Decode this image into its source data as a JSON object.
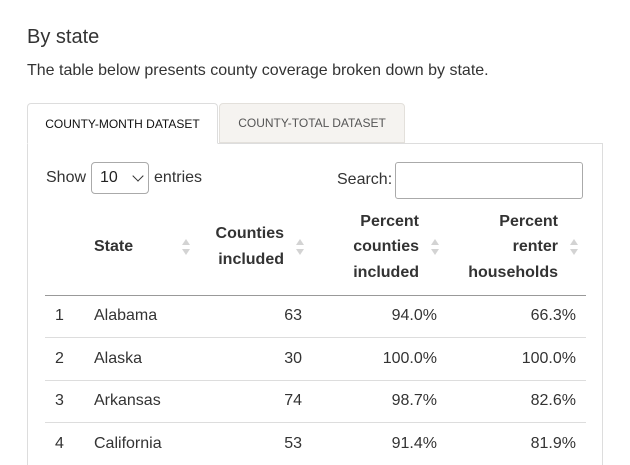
{
  "section": {
    "title": "By state",
    "description": "The table below presents county coverage broken down by state."
  },
  "tabs": [
    {
      "label": "COUNTY-MONTH DATASET",
      "active": true
    },
    {
      "label": "COUNTY-TOTAL DATASET",
      "active": false
    }
  ],
  "length_control": {
    "prefix": "Show",
    "value": "10",
    "suffix": "entries"
  },
  "search": {
    "label": "Search:",
    "value": ""
  },
  "table": {
    "headers": {
      "state": "State",
      "counties_included": [
        "Counties",
        "included"
      ],
      "percent_counties_included": [
        "Percent",
        "counties",
        "included"
      ],
      "percent_renter_households": [
        "Percent",
        "renter",
        "households"
      ]
    },
    "rows": [
      {
        "index": "1",
        "state": "Alabama",
        "counties": "63",
        "pct_counties": "94.0%",
        "pct_renter": "66.3%"
      },
      {
        "index": "2",
        "state": "Alaska",
        "counties": "30",
        "pct_counties": "100.0%",
        "pct_renter": "100.0%"
      },
      {
        "index": "3",
        "state": "Arkansas",
        "counties": "74",
        "pct_counties": "98.7%",
        "pct_renter": "82.6%"
      },
      {
        "index": "4",
        "state": "California",
        "counties": "53",
        "pct_counties": "91.4%",
        "pct_renter": "81.9%"
      }
    ]
  },
  "icons": {
    "sort": "sort-both-icon",
    "dropdown": "chevron-down-icon"
  },
  "colors": {
    "inactive_tab_bg": "#f5f3f0",
    "border": "#dddddd",
    "header_rule": "#999999",
    "sort_icon": "#d3d3d3"
  }
}
